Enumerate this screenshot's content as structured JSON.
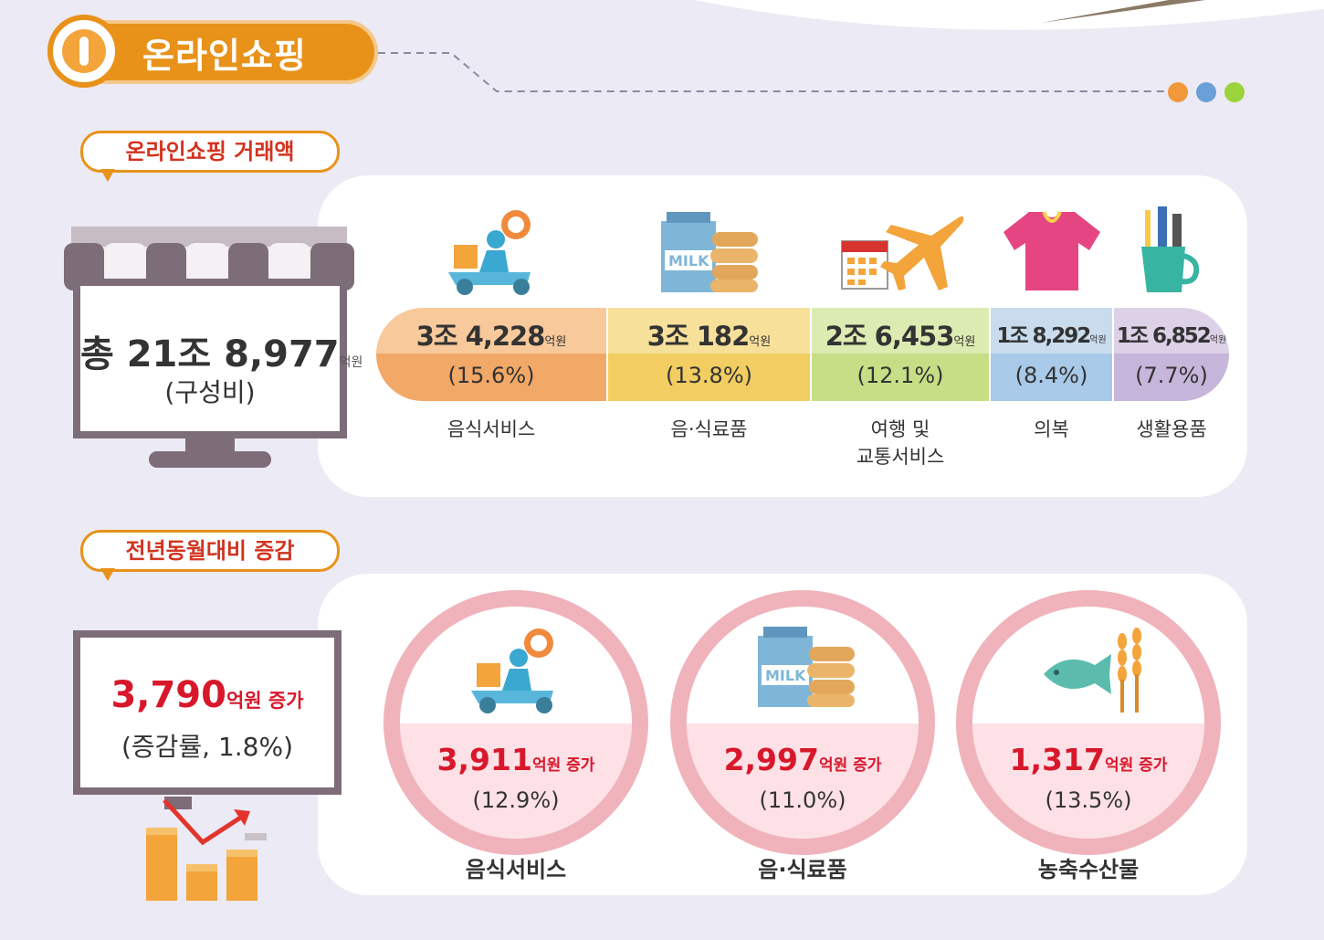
{
  "header": {
    "title": "온라인쇼핑"
  },
  "colors": {
    "accent": "#e8921a",
    "red": "#d8172b",
    "dots": [
      "#f0983a",
      "#6a9fd8",
      "#9bd33a"
    ]
  },
  "section1": {
    "label": "온라인쇼핑 거래액",
    "total": {
      "prefix": "총 21조 8,977",
      "unit": "억원",
      "note": "(구성비)"
    },
    "categories": [
      {
        "amount": "3조 4,228",
        "unit": "억원",
        "pct": "(15.6%)",
        "label": "음식서비스",
        "icon": "delivery-scooter-icon",
        "color_top": "#f8c99a",
        "color_bot": "#f2a866"
      },
      {
        "amount": "3조 182",
        "unit": "억원",
        "pct": "(13.8%)",
        "label": "음·식료품",
        "icon": "milk-food-icon",
        "color_top": "#f7e09a",
        "color_bot": "#f1cd62"
      },
      {
        "amount": "2조 6,453",
        "unit": "억원",
        "pct": "(12.1%)",
        "label": "여행 및\n교통서비스",
        "icon": "airplane-calendar-icon",
        "color_top": "#dcebb2",
        "color_bot": "#c6df86"
      },
      {
        "amount": "1조 8,292",
        "unit": "억원",
        "pct": "(8.4%)",
        "label": "의복",
        "icon": "tshirt-icon",
        "color_top": "#c8dcee",
        "color_bot": "#a9c9e8"
      },
      {
        "amount": "1조 6,852",
        "unit": "억원",
        "pct": "(7.7%)",
        "label": "생활용품",
        "icon": "toothbrush-cup-icon",
        "color_top": "#ddd1e8",
        "color_bot": "#c7b6db"
      }
    ]
  },
  "section2": {
    "label": "전년동월대비 증감",
    "total": {
      "value": "3,790",
      "unit": "억원 증가",
      "note": "(증감률, 1.8%)"
    },
    "items": [
      {
        "value": "3,911",
        "unit": "억원 증가",
        "pct": "(12.9%)",
        "label": "음식서비스",
        "icon": "delivery-scooter-icon"
      },
      {
        "value": "2,997",
        "unit": "억원 증가",
        "pct": "(11.0%)",
        "label": "음·식료품",
        "icon": "milk-food-icon"
      },
      {
        "value": "1,317",
        "unit": "억원 증가",
        "pct": "(13.5%)",
        "label": "농축수산물",
        "icon": "fish-wheat-icon"
      }
    ]
  }
}
